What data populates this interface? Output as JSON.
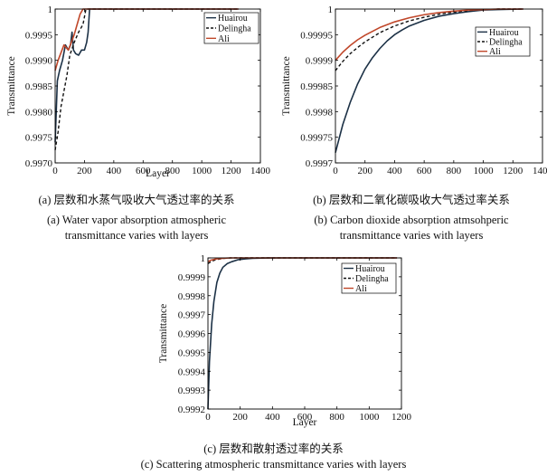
{
  "colors": {
    "huairou": "#1c3146",
    "delingha": "#111111",
    "ali": "#c0472a"
  },
  "captions": {
    "a_cn": "(a) 层数和水蒸气吸收大气透过率的关系",
    "a_en1": "(a) Water vapor absorption atmospheric",
    "a_en2": "transmittance varies with layers",
    "b_cn": "(b) 层数和二氧化碳吸收大气透过率关系",
    "b_en1": "(b) Carbon dioxide absorption atmsohperic",
    "b_en2": "transmittance varies with layers",
    "c_cn": "(c) 层数和散射透过率的关系",
    "c_en": "(c) Scattering atmospheric transmittance varies with layers"
  },
  "chart_data": [
    {
      "type": "line",
      "xlabel": "Layer",
      "ylabel": "Transmittance",
      "xlim": [
        0,
        1400
      ],
      "ylim": [
        0.997,
        1.0
      ],
      "xticks": [
        "0",
        "200",
        "400",
        "600",
        "800",
        "1000",
        "1200",
        "1400"
      ],
      "yticks": [
        "0.9970",
        "0.9975",
        "0.9980",
        "0.9985",
        "0.9990",
        "0.9995",
        "1"
      ],
      "legend": [
        "Huairou",
        "Delingha",
        "Ali"
      ],
      "legend_position": "top-right",
      "series": [
        {
          "name": "Huairou",
          "style": "solid",
          "x": [
            0,
            15,
            30,
            50,
            70,
            90,
            105,
            115,
            125,
            140,
            160,
            180,
            200,
            215,
            225,
            235,
            1250
          ],
          "y": [
            0.9974,
            0.9986,
            0.9988,
            0.999,
            0.9993,
            0.9992,
            0.9993,
            0.99955,
            0.9992,
            0.99913,
            0.9991,
            0.9992,
            0.9992,
            0.99935,
            0.99955,
            1.0,
            1.0
          ]
        },
        {
          "name": "Delingha",
          "style": "dashed",
          "x": [
            0,
            20,
            40,
            60,
            80,
            100,
            130,
            160,
            190,
            210,
            1250
          ],
          "y": [
            0.99725,
            0.9976,
            0.9981,
            0.9984,
            0.9987,
            0.9991,
            0.99935,
            0.99955,
            0.9997,
            1.0,
            1.0
          ]
        },
        {
          "name": "Ali",
          "style": "solid",
          "x": [
            0,
            20,
            40,
            60,
            90,
            110,
            130,
            150,
            170,
            190,
            1250
          ],
          "y": [
            0.9988,
            0.999,
            0.99915,
            0.9993,
            0.9992,
            0.99935,
            0.9995,
            0.9997,
            0.9999,
            1.0,
            1.0
          ]
        }
      ]
    },
    {
      "type": "line",
      "xlabel": "",
      "ylabel": "Transmittance",
      "xlim": [
        0,
        1400
      ],
      "ylim": [
        0.9997,
        1.0
      ],
      "xticks": [
        "0",
        "200",
        "400",
        "600",
        "800",
        "1000",
        "1200",
        "1400"
      ],
      "yticks": [
        "0.9997",
        "0.99975",
        "0.9998",
        "0.99985",
        "0.9999",
        "0.99995",
        "1"
      ],
      "legend": [
        "Huairou",
        "Delingha",
        "Ali"
      ],
      "legend_position": "top-right",
      "series": [
        {
          "name": "Huairou",
          "style": "solid",
          "x": [
            0,
            50,
            100,
            150,
            200,
            250,
            300,
            350,
            400,
            450,
            500,
            600,
            700,
            800,
            900,
            1000,
            1100,
            1270
          ],
          "y": [
            0.99972,
            0.999775,
            0.999818,
            0.999854,
            0.999883,
            0.999905,
            0.999923,
            0.999938,
            0.99995,
            0.999959,
            0.999967,
            0.999978,
            0.999986,
            0.999991,
            0.999995,
            0.999998,
            0.999999,
            1.0
          ]
        },
        {
          "name": "Delingha",
          "style": "dashed",
          "x": [
            0,
            50,
            100,
            150,
            200,
            300,
            400,
            500,
            600,
            700,
            800,
            900,
            1000,
            1100,
            1270
          ],
          "y": [
            0.99988,
            0.999898,
            0.999913,
            0.999925,
            0.999936,
            0.999954,
            0.999967,
            0.999977,
            0.999984,
            0.99999,
            0.999994,
            0.999997,
            0.999999,
            1.0,
            1.0
          ]
        },
        {
          "name": "Ali",
          "style": "solid",
          "x": [
            0,
            50,
            100,
            150,
            200,
            300,
            400,
            500,
            600,
            700,
            800,
            900,
            1000,
            1100,
            1270
          ],
          "y": [
            0.9999,
            0.999916,
            0.999929,
            0.99994,
            0.999949,
            0.999964,
            0.999975,
            0.999983,
            0.999989,
            0.999993,
            0.999996,
            0.999998,
            0.999999,
            1.0,
            1.0
          ]
        }
      ]
    },
    {
      "type": "line",
      "xlabel": "Layer",
      "ylabel": "Transmittance",
      "xlim": [
        0,
        1300
      ],
      "ylim": [
        0.9992,
        1.0
      ],
      "xticks": [
        "0",
        "200",
        "400",
        "600",
        "800",
        "1000",
        "1200"
      ],
      "yticks": [
        "0.9992",
        "0.9993",
        "0.9994",
        "0.9995",
        "0.9996",
        "0.9997",
        "0.9998",
        "0.9999",
        "1"
      ],
      "legend": [
        "Huairou",
        "Delingha",
        "Ali"
      ],
      "legend_position": "top-right",
      "series": [
        {
          "name": "Huairou",
          "style": "solid",
          "x": [
            0,
            10,
            25,
            40,
            60,
            80,
            100,
            130,
            160,
            200,
            250,
            300,
            400,
            500,
            700,
            1270
          ],
          "y": [
            0.9992,
            0.99945,
            0.99965,
            0.99977,
            0.99987,
            0.99992,
            0.99995,
            0.99997,
            0.99998,
            0.99999,
            0.999995,
            0.999998,
            0.9999995,
            1.0,
            1.0,
            1.0
          ]
        },
        {
          "name": "Delingha",
          "style": "dashed",
          "x": [
            0,
            20,
            50,
            100,
            150,
            1270
          ],
          "y": [
            0.99997,
            0.99998,
            0.99999,
            0.999997,
            1.0,
            1.0
          ]
        },
        {
          "name": "Ali",
          "style": "solid",
          "x": [
            0,
            20,
            50,
            100,
            150,
            1270
          ],
          "y": [
            0.99998,
            0.999988,
            0.999994,
            0.999998,
            1.0,
            1.0
          ]
        }
      ]
    }
  ]
}
